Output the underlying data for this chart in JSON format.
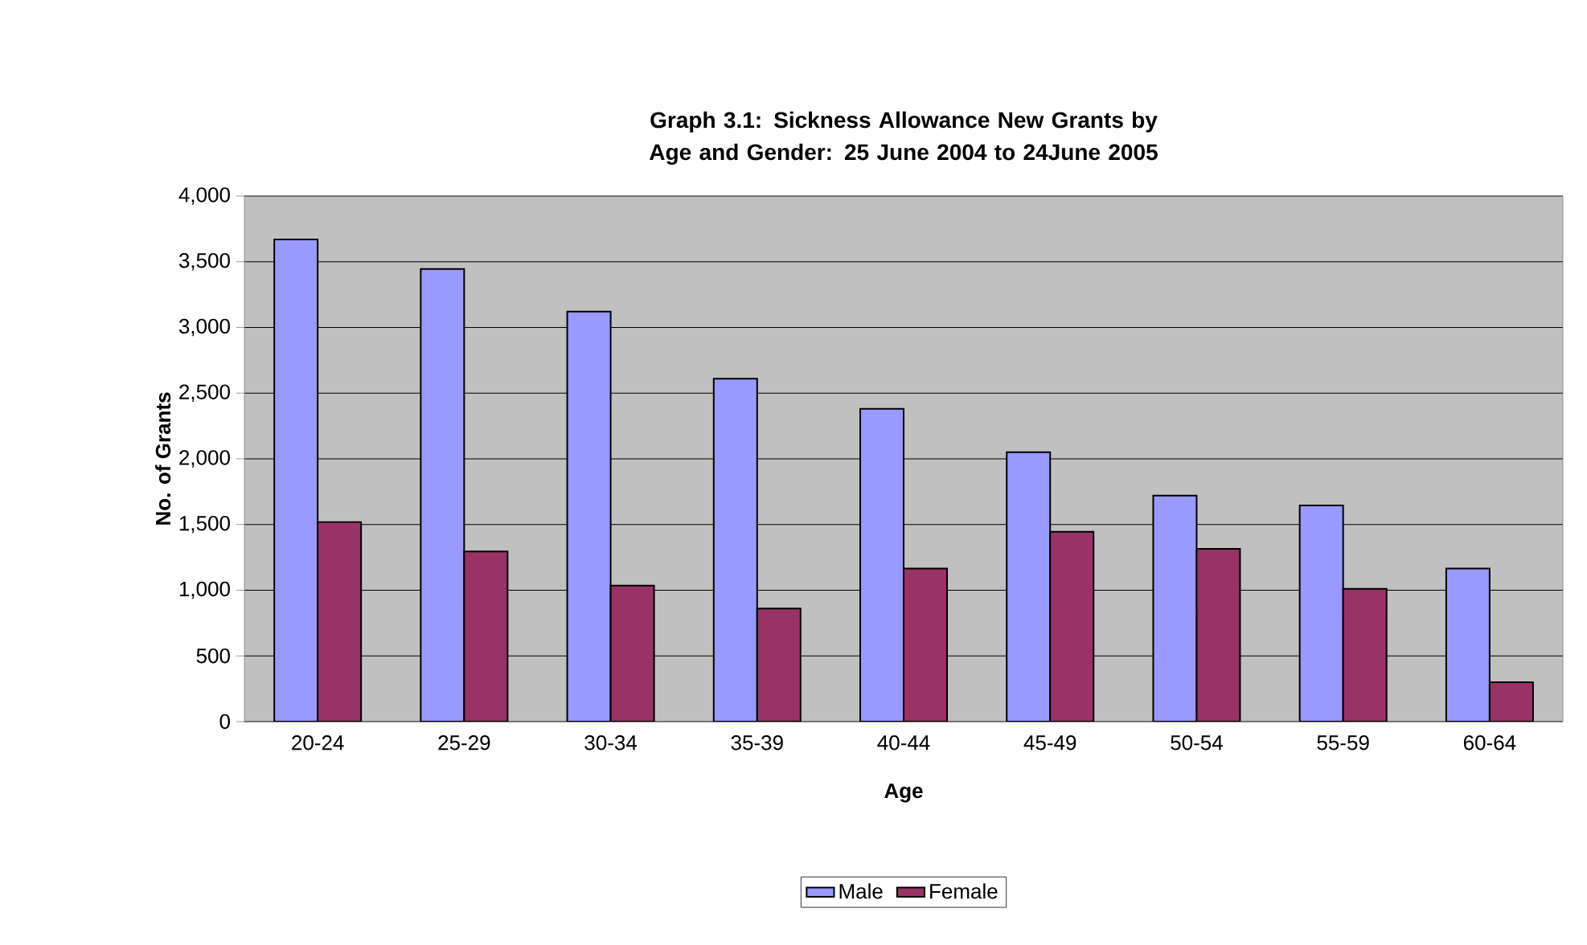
{
  "chart_data": {
    "type": "bar",
    "title": "Graph 3.1:  Sickness Allowance New Grants by Age and Gender: 25 June 2004 to 24June 2005",
    "xlabel": "Age",
    "ylabel": "No. of Grants",
    "categories": [
      "20-24",
      "25-29",
      "30-34",
      "35-39",
      "40-44",
      "45-49",
      "50-54",
      "55-59",
      "60-64"
    ],
    "series": [
      {
        "name": "Male",
        "color": "#9999ff",
        "values": [
          3670,
          3445,
          3120,
          2610,
          2380,
          2050,
          1720,
          1645,
          1165
        ]
      },
      {
        "name": "Female",
        "color": "#993366",
        "values": [
          1520,
          1295,
          1035,
          860,
          1165,
          1445,
          1315,
          1010,
          300
        ]
      }
    ],
    "ylim": [
      0,
      4000
    ],
    "yticks": [
      0,
      {
        "value": 500,
        "label": "500"
      },
      {
        "value": 1000,
        "label": "1,000"
      },
      {
        "value": 1500,
        "label": "1,500"
      },
      {
        "value": 2000,
        "label": "2,000"
      },
      {
        "value": 2500,
        "label": "2,500"
      },
      {
        "value": 3000,
        "label": "3,000"
      },
      {
        "value": 3500,
        "label": "3,500"
      },
      {
        "value": 4000,
        "label": "4,000"
      }
    ],
    "grid": "y",
    "legend": "bottom"
  }
}
